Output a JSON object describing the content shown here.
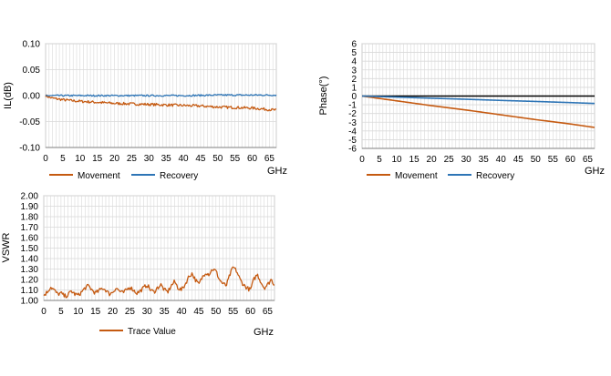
{
  "chart_data": [
    {
      "id": "il",
      "type": "line",
      "ylabel": "IL(dB)",
      "xlabel": "GHz",
      "xlim": [
        0,
        67
      ],
      "ylim": [
        -0.1,
        0.1
      ],
      "xticks": [
        0,
        5,
        10,
        15,
        20,
        25,
        30,
        35,
        40,
        45,
        50,
        55,
        60,
        65
      ],
      "yticks": [
        -0.1,
        -0.05,
        0,
        0.05,
        0.1
      ],
      "ytick_labels": [
        "-0.10",
        "-0.05",
        "0.00",
        "0.05",
        "0.10"
      ],
      "grid": true,
      "legend": "bottom",
      "series": [
        {
          "name": "Movement",
          "color": "#C55A11",
          "x": [
            0,
            1,
            2,
            3,
            5,
            8,
            10,
            15,
            20,
            25,
            30,
            35,
            40,
            45,
            50,
            55,
            60,
            65,
            67
          ],
          "y": [
            0,
            -0.003,
            -0.005,
            -0.006,
            -0.008,
            -0.01,
            -0.011,
            -0.013,
            -0.015,
            -0.016,
            -0.017,
            -0.018,
            -0.019,
            -0.02,
            -0.022,
            -0.023,
            -0.024,
            -0.027,
            -0.028
          ],
          "noise": 0.0025
        },
        {
          "name": "Recovery",
          "color": "#2E75B6",
          "x": [
            0,
            10,
            20,
            30,
            40,
            50,
            60,
            67
          ],
          "y": [
            0,
            0,
            0,
            0,
            0,
            0.001,
            0.001,
            0.001
          ],
          "noise": 0.0015
        }
      ]
    },
    {
      "id": "phase",
      "type": "line",
      "ylabel": "Phase(°)",
      "xlabel": "GHz",
      "xlim": [
        0,
        67
      ],
      "ylim": [
        -6,
        6
      ],
      "xticks": [
        0,
        5,
        10,
        15,
        20,
        25,
        30,
        35,
        40,
        45,
        50,
        55,
        60,
        65
      ],
      "yticks": [
        -6,
        -5,
        -4,
        -3,
        -2,
        -1,
        0,
        1,
        2,
        3,
        4,
        5,
        6
      ],
      "ytick_labels": [
        "-6",
        "-5",
        "-4",
        "-3",
        "-2",
        "-1",
        "0",
        "1",
        "2",
        "3",
        "4",
        "5",
        "6"
      ],
      "grid": true,
      "legend": "bottom",
      "series": [
        {
          "name": "Movement",
          "color": "#C55A11",
          "x": [
            0,
            10,
            20,
            30,
            40,
            50,
            60,
            67
          ],
          "y": [
            0,
            -0.55,
            -1.1,
            -1.6,
            -2.15,
            -2.7,
            -3.2,
            -3.6
          ],
          "noise": 0
        },
        {
          "name": "Recovery",
          "color": "#2E75B6",
          "x": [
            0,
            10,
            20,
            30,
            40,
            50,
            60,
            67
          ],
          "y": [
            0,
            -0.12,
            -0.25,
            -0.37,
            -0.5,
            -0.62,
            -0.75,
            -0.85
          ],
          "noise": 0
        }
      ]
    },
    {
      "id": "vswr",
      "type": "line",
      "ylabel": "VSWR",
      "xlabel": "GHz",
      "xlim": [
        0,
        67
      ],
      "ylim": [
        1.0,
        2.0
      ],
      "xticks": [
        0,
        5,
        10,
        15,
        20,
        25,
        30,
        35,
        40,
        45,
        50,
        55,
        60,
        65
      ],
      "yticks": [
        1.0,
        1.1,
        1.2,
        1.3,
        1.4,
        1.5,
        1.6,
        1.7,
        1.8,
        1.9,
        2.0
      ],
      "ytick_labels": [
        "1.00",
        "1.10",
        "1.20",
        "1.30",
        "1.40",
        "1.50",
        "1.60",
        "1.70",
        "1.80",
        "1.90",
        "2.00"
      ],
      "grid": true,
      "legend": "bottom",
      "series": [
        {
          "name": "Trace Value",
          "color": "#C55A11",
          "x": [
            0,
            1,
            2,
            3,
            4,
            5,
            6,
            7,
            8,
            9,
            10,
            11,
            12,
            13,
            14,
            15,
            16,
            17,
            18,
            19,
            20,
            21,
            22,
            23,
            24,
            25,
            26,
            27,
            28,
            29,
            30,
            31,
            32,
            33,
            34,
            35,
            36,
            37,
            38,
            39,
            40,
            41,
            42,
            43,
            44,
            45,
            46,
            47,
            48,
            49,
            50,
            51,
            52,
            53,
            54,
            55,
            56,
            57,
            58,
            59,
            60,
            61,
            62,
            63,
            64,
            65,
            66,
            67
          ],
          "y": [
            1.05,
            1.08,
            1.13,
            1.1,
            1.06,
            1.07,
            1.04,
            1.05,
            1.09,
            1.06,
            1.05,
            1.08,
            1.12,
            1.14,
            1.1,
            1.07,
            1.09,
            1.12,
            1.1,
            1.06,
            1.08,
            1.12,
            1.09,
            1.07,
            1.1,
            1.13,
            1.1,
            1.07,
            1.09,
            1.12,
            1.15,
            1.1,
            1.08,
            1.12,
            1.15,
            1.1,
            1.08,
            1.14,
            1.18,
            1.12,
            1.1,
            1.15,
            1.22,
            1.26,
            1.2,
            1.15,
            1.22,
            1.27,
            1.25,
            1.3,
            1.28,
            1.2,
            1.16,
            1.14,
            1.24,
            1.32,
            1.28,
            1.2,
            1.15,
            1.12,
            1.1,
            1.2,
            1.25,
            1.18,
            1.12,
            1.15,
            1.2,
            1.15
          ],
          "noise": 0.02
        }
      ]
    }
  ]
}
